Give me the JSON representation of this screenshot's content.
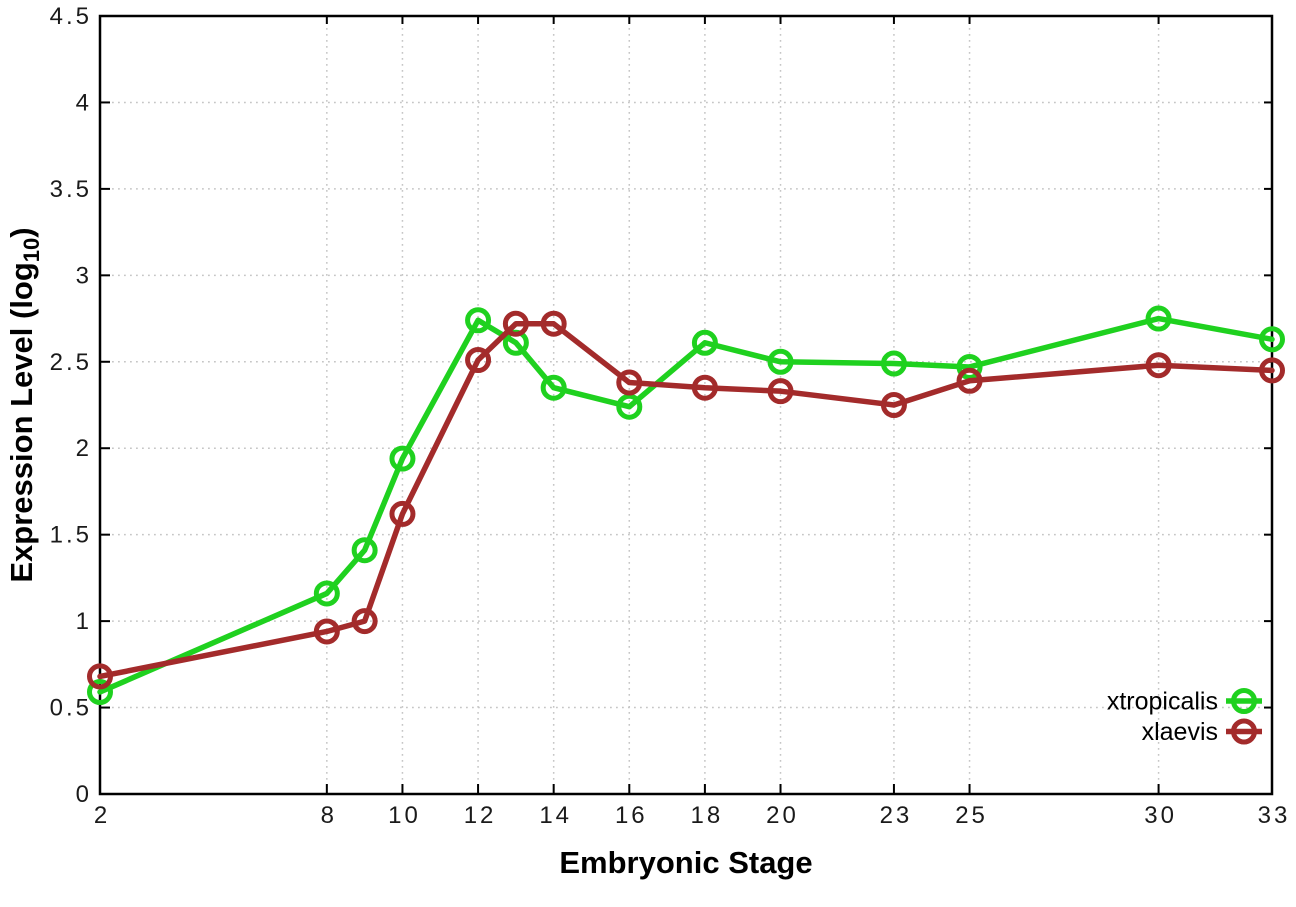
{
  "chart_data": {
    "type": "line",
    "title": "",
    "xlabel": "Embryonic Stage",
    "ylabel": "Expression Level (log10)",
    "ylabel_parts": {
      "base": "Expression Level (log",
      "sub": "10",
      "close": ")"
    },
    "xlim": [
      2,
      33
    ],
    "ylim": [
      0,
      4.5
    ],
    "x_ticks": [
      2,
      8,
      10,
      12,
      14,
      16,
      18,
      20,
      23,
      25,
      30,
      33
    ],
    "y_ticks": [
      0,
      0.5,
      1,
      1.5,
      2,
      2.5,
      3,
      3.5,
      4,
      4.5
    ],
    "grid": true,
    "grid_style": "dotted",
    "legend_position": "bottom-right",
    "x": [
      2,
      8,
      9,
      10,
      12,
      13,
      14,
      16,
      18,
      20,
      23,
      25,
      30,
      33
    ],
    "series": [
      {
        "name": "xtropicalis",
        "color": "#1fd11f",
        "marker": "open-circle",
        "values": [
          0.59,
          1.16,
          1.41,
          1.94,
          2.74,
          2.61,
          2.35,
          2.24,
          2.61,
          2.5,
          2.49,
          2.47,
          2.75,
          2.63
        ]
      },
      {
        "name": "xlaevis",
        "color": "#a32b2b",
        "marker": "open-circle",
        "values": [
          0.68,
          0.94,
          1.0,
          1.62,
          2.51,
          2.72,
          2.72,
          2.38,
          2.35,
          2.33,
          2.25,
          2.39,
          2.48,
          2.45
        ]
      }
    ]
  },
  "colors": {
    "background": "#ffffff",
    "axis": "#000000",
    "grid": "#c6c6c6",
    "tick_text": "#1a1a1a",
    "series_green": "#1fd11f",
    "series_darkred": "#a32b2b"
  }
}
